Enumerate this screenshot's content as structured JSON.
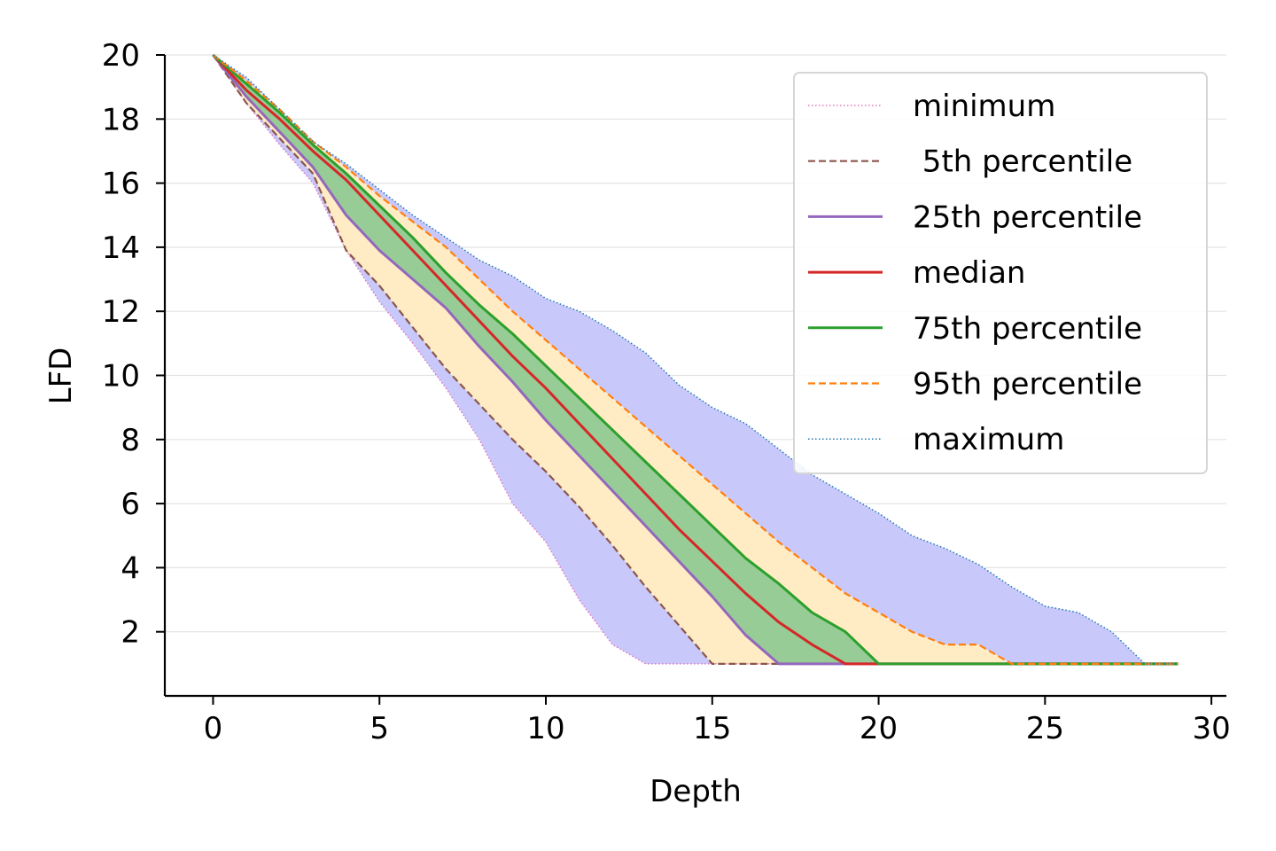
{
  "chart_data": {
    "type": "line",
    "xlabel": "Depth",
    "ylabel": "LFD",
    "xlim": [
      -1.45,
      30.45
    ],
    "ylim": [
      0,
      20
    ],
    "xticks": [
      0,
      5,
      10,
      15,
      20,
      25,
      30
    ],
    "yticks": [
      2,
      4,
      6,
      8,
      10,
      12,
      14,
      16,
      18,
      20
    ],
    "grid": "horizontal",
    "legend_position": "upper-right",
    "x": [
      0,
      1,
      2,
      3,
      4,
      5,
      6,
      7,
      8,
      9,
      10,
      11,
      12,
      13,
      14,
      15,
      16,
      17,
      18,
      19,
      20,
      21,
      22,
      23,
      24,
      25,
      26,
      27,
      28,
      29
    ],
    "series": [
      {
        "name": "minimum",
        "color": "#e377c2",
        "dash": "dotted",
        "values": [
          20,
          18.5,
          17.2,
          16,
          13.9,
          12.3,
          11,
          9.6,
          8,
          6,
          4.8,
          3,
          1.6,
          1,
          1,
          1,
          1,
          1,
          1,
          1,
          1,
          1,
          1,
          1,
          1,
          1,
          1,
          1,
          1,
          1
        ]
      },
      {
        "name": " 5th percentile",
        "color": "#8c564b",
        "dash": "dashed",
        "values": [
          20,
          18.5,
          17.4,
          16.3,
          13.9,
          12.8,
          11.5,
          10.2,
          9.1,
          8,
          7,
          5.9,
          4.7,
          3.4,
          2.2,
          1,
          1,
          1,
          1,
          1,
          1,
          1,
          1,
          1,
          1,
          1,
          1,
          1,
          1,
          1
        ]
      },
      {
        "name": "25th percentile",
        "color": "#9467bd",
        "dash": "solid",
        "values": [
          20,
          18.7,
          17.6,
          16.5,
          15,
          13.9,
          13,
          12.1,
          10.9,
          9.8,
          8.6,
          7.5,
          6.4,
          5.3,
          4.2,
          3.1,
          1.9,
          1,
          1,
          1,
          1,
          1,
          1,
          1,
          1,
          1,
          1,
          1,
          1,
          1
        ]
      },
      {
        "name": "median",
        "color": "#d62728",
        "dash": "solid",
        "values": [
          20,
          18.9,
          18,
          17,
          16.1,
          15,
          13.9,
          12.8,
          11.7,
          10.6,
          9.6,
          8.5,
          7.4,
          6.3,
          5.2,
          4.2,
          3.2,
          2.3,
          1.6,
          1,
          1,
          1,
          1,
          1,
          1,
          1,
          1,
          1,
          1,
          1
        ]
      },
      {
        "name": "75th percentile",
        "color": "#2ca02c",
        "dash": "solid",
        "values": [
          20,
          19.1,
          18.2,
          17.2,
          16.3,
          15.3,
          14.3,
          13.2,
          12.2,
          11.3,
          10.3,
          9.3,
          8.3,
          7.3,
          6.3,
          5.3,
          4.3,
          3.5,
          2.6,
          2,
          1,
          1,
          1,
          1,
          1,
          1,
          1,
          1,
          1,
          1
        ]
      },
      {
        "name": "95th percentile",
        "color": "#ff7f0e",
        "dash": "dashed",
        "values": [
          20,
          19.2,
          18.3,
          17.3,
          16.5,
          15.6,
          14.8,
          14,
          13,
          12,
          11.1,
          10.2,
          9.3,
          8.4,
          7.5,
          6.6,
          5.7,
          4.8,
          4,
          3.2,
          2.6,
          2,
          1.6,
          1.6,
          1,
          1,
          1,
          1,
          1,
          1
        ]
      },
      {
        "name": "maximum",
        "color": "#1f77b4",
        "dash": "dotted",
        "values": [
          20,
          19.3,
          18.3,
          17.3,
          16.6,
          15.8,
          15,
          14.3,
          13.6,
          13.1,
          12.4,
          12,
          11.4,
          10.7,
          9.7,
          9,
          8.5,
          7.7,
          6.9,
          6.3,
          5.7,
          5,
          4.6,
          4.1,
          3.4,
          2.8,
          2.6,
          2,
          1,
          1
        ]
      }
    ],
    "bands": [
      {
        "from": "minimum",
        "to": "maximum",
        "color": "#c8c8fa"
      },
      {
        "from": " 5th percentile",
        "to": "95th percentile",
        "color": "#ffecc4"
      },
      {
        "from": "25th percentile",
        "to": "75th percentile",
        "color": "#97cc96"
      }
    ]
  }
}
